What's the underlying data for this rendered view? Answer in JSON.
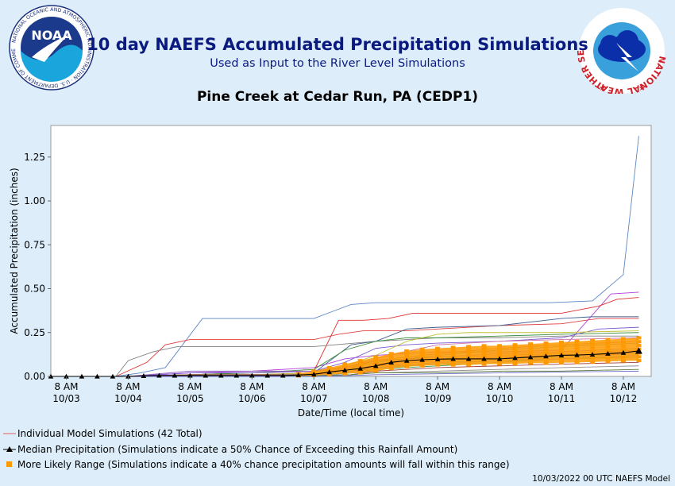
{
  "header": {
    "title": "10 day NAEFS Accumulated Precipitation Simulations",
    "subtitle": "Used as Input to the River Level Simulations",
    "station": "Pine Creek at Cedar Run, PA (CEDP1)",
    "noaa_logo_text": "NOAA",
    "noaa_ring_text": "NATIONAL OCEANIC AND ATMOSPHERIC ADMINISTRATION · U.S. DEPARTMENT OF COMMERCE",
    "nws_ring_text": "NATIONAL WEATHER SERVICE"
  },
  "legend": {
    "individual": "Individual Model Simulations (42 Total)",
    "median": "Median Precipitation (Simulations indicate a 50% Chance of Exceeding this Rainfall Amount)",
    "range": "More Likely Range (Simulations indicate a 40% chance precipitation amounts will fall within this range)"
  },
  "footer": "10/03/2022 00 UTC NAEFS Model",
  "colors": {
    "title": "#0a1a7f",
    "individual_line": "#e06060",
    "median": "#000000",
    "range": "#ff9900",
    "plot_bg": "#ffffff",
    "page_bg": "#ddeefa"
  },
  "chart_data": {
    "type": "line",
    "xlabel": "Date/Time (local time)",
    "ylabel": "Accumulated Precipitation (inches)",
    "ylim": [
      0,
      1.43
    ],
    "xlim": [
      -0.25,
      9.45
    ],
    "y_ticks": [
      0.0,
      0.25,
      0.5,
      0.75,
      1.0,
      1.25
    ],
    "y_tick_labels": [
      "0.00",
      "0.25",
      "0.50",
      "0.75",
      "1.00",
      "1.25"
    ],
    "x_ticks": [
      0,
      1,
      2,
      3,
      4,
      5,
      6,
      7,
      8,
      9
    ],
    "x_tick_labels": [
      [
        "8 AM",
        "10/03"
      ],
      [
        "8 AM",
        "10/04"
      ],
      [
        "8 AM",
        "10/05"
      ],
      [
        "8 AM",
        "10/06"
      ],
      [
        "8 AM",
        "10/07"
      ],
      [
        "8 AM",
        "10/08"
      ],
      [
        "8 AM",
        "10/09"
      ],
      [
        "8 AM",
        "10/10"
      ],
      [
        "8 AM",
        "10/11"
      ],
      [
        "8 AM",
        "10/12"
      ]
    ],
    "x_unit": "days since 8 AM 10/03",
    "grid": false,
    "legend_position": "bottom-left",
    "median": {
      "x": [
        -0.25,
        0,
        0.25,
        0.5,
        0.75,
        1,
        1.25,
        1.5,
        1.75,
        2,
        2.25,
        2.5,
        2.75,
        3,
        3.25,
        3.5,
        3.75,
        4,
        4.25,
        4.5,
        4.75,
        5,
        5.25,
        5.5,
        5.75,
        6,
        6.25,
        6.5,
        6.75,
        7,
        7.25,
        7.5,
        7.75,
        8,
        8.25,
        8.5,
        8.75,
        9,
        9.25
      ],
      "y": [
        0,
        0,
        0,
        0,
        0,
        0,
        0.003,
        0.005,
        0.005,
        0.005,
        0.005,
        0.005,
        0.005,
        0.005,
        0.005,
        0.005,
        0.008,
        0.012,
        0.025,
        0.035,
        0.045,
        0.06,
        0.08,
        0.09,
        0.095,
        0.098,
        0.1,
        0.1,
        0.1,
        0.1,
        0.105,
        0.11,
        0.115,
        0.12,
        0.122,
        0.125,
        0.13,
        0.135,
        0.145
      ]
    },
    "range": {
      "x": [
        3.75,
        4.0,
        4.25,
        4.5,
        4.75,
        5.0,
        5.25,
        5.5,
        5.75,
        6.0,
        6.25,
        6.5,
        6.75,
        7.0,
        7.25,
        7.5,
        7.75,
        8.0,
        8.25,
        8.5,
        8.75,
        9.0,
        9.25
      ],
      "low": [
        0.003,
        0.005,
        0.01,
        0.015,
        0.02,
        0.03,
        0.045,
        0.055,
        0.06,
        0.065,
        0.065,
        0.065,
        0.07,
        0.07,
        0.072,
        0.075,
        0.075,
        0.078,
        0.08,
        0.082,
        0.085,
        0.088,
        0.09
      ],
      "high": [
        0.015,
        0.03,
        0.05,
        0.07,
        0.09,
        0.11,
        0.13,
        0.145,
        0.155,
        0.16,
        0.165,
        0.17,
        0.175,
        0.175,
        0.18,
        0.185,
        0.19,
        0.195,
        0.2,
        0.205,
        0.21,
        0.215,
        0.22
      ]
    },
    "series": [
      {
        "color": "#5b86c4",
        "x": [
          0.8,
          1.2,
          1.6,
          2.2,
          3.0,
          4.0,
          4.3,
          4.6,
          5.0,
          6.0,
          7.0,
          7.8,
          8.5,
          9.0,
          9.25
        ],
        "y": [
          0,
          0.02,
          0.05,
          0.33,
          0.33,
          0.33,
          0.37,
          0.41,
          0.42,
          0.42,
          0.42,
          0.42,
          0.43,
          0.58,
          1.37
        ]
      },
      {
        "color": "#e04040",
        "x": [
          0.8,
          1.3,
          1.6,
          2.0,
          3.0,
          4.0,
          4.4,
          4.8,
          5.5,
          6.0,
          7.0,
          8.0,
          8.6,
          9.25
        ],
        "y": [
          0,
          0.08,
          0.18,
          0.21,
          0.21,
          0.21,
          0.24,
          0.26,
          0.26,
          0.27,
          0.29,
          0.3,
          0.33,
          0.33
        ]
      },
      {
        "color": "#b13fd6",
        "x": [
          1.0,
          2.0,
          3.0,
          4.0,
          4.5,
          5.0,
          5.5,
          6.0,
          7.0,
          8.0,
          8.8,
          9.25
        ],
        "y": [
          0,
          0.02,
          0.03,
          0.05,
          0.1,
          0.12,
          0.13,
          0.14,
          0.14,
          0.15,
          0.47,
          0.48
        ]
      },
      {
        "color": "#e03030",
        "x": [
          1.0,
          2.0,
          3.0,
          4.0,
          4.4,
          4.8,
          5.2,
          5.6,
          6.0,
          7.0,
          8.0,
          8.6,
          8.9,
          9.25
        ],
        "y": [
          0,
          0.01,
          0.02,
          0.03,
          0.32,
          0.32,
          0.33,
          0.36,
          0.36,
          0.36,
          0.36,
          0.4,
          0.44,
          0.45
        ]
      },
      {
        "color": "#808080",
        "x": [
          0.8,
          1.0,
          1.4,
          1.8,
          2.0,
          3.0,
          4.0,
          5.0,
          6.0,
          7.0,
          8.0,
          9.25
        ],
        "y": [
          0,
          0.09,
          0.14,
          0.17,
          0.17,
          0.17,
          0.17,
          0.2,
          0.22,
          0.22,
          0.23,
          0.23
        ]
      },
      {
        "color": "#406090",
        "x": [
          1.0,
          2.0,
          3.0,
          4.0,
          4.6,
          5.0,
          5.5,
          6.0,
          7.0,
          8.0,
          8.5,
          9.25
        ],
        "y": [
          0,
          0.01,
          0.01,
          0.02,
          0.18,
          0.2,
          0.27,
          0.28,
          0.29,
          0.33,
          0.34,
          0.34
        ]
      },
      {
        "color": "#3c8f3c",
        "x": [
          1.0,
          2.0,
          3.0,
          4.0,
          4.5,
          5.0,
          5.5,
          6.0,
          7.0,
          8.0,
          9.25
        ],
        "y": [
          0,
          0.01,
          0.02,
          0.04,
          0.15,
          0.2,
          0.22,
          0.22,
          0.23,
          0.24,
          0.25
        ]
      },
      {
        "color": "#7a5ad0",
        "x": [
          1.0,
          2.0,
          3.0,
          4.0,
          4.5,
          5.0,
          5.5,
          6.0,
          7.0,
          8.0,
          8.6,
          9.25
        ],
        "y": [
          0,
          0.02,
          0.02,
          0.03,
          0.08,
          0.16,
          0.18,
          0.19,
          0.2,
          0.22,
          0.27,
          0.28
        ]
      },
      {
        "color": "#c0c030",
        "x": [
          1.0,
          2.0,
          3.0,
          4.0,
          4.5,
          5.0,
          5.5,
          6.0,
          6.5,
          7.0,
          8.0,
          9.25
        ],
        "y": [
          0,
          0.01,
          0.01,
          0.02,
          0.06,
          0.12,
          0.2,
          0.24,
          0.25,
          0.25,
          0.25,
          0.26
        ]
      },
      {
        "color": "#d070a0",
        "x": [
          1.0,
          2.0,
          3.0,
          4.0,
          4.6,
          5.0,
          5.6,
          6.0,
          7.0,
          8.0,
          9.25
        ],
        "y": [
          0,
          0.01,
          0.01,
          0.01,
          0.06,
          0.1,
          0.15,
          0.18,
          0.2,
          0.21,
          0.22
        ]
      },
      {
        "color": "#30a0a0",
        "x": [
          1.0,
          2.0,
          3.0,
          4.0,
          4.5,
          5.0,
          6.0,
          7.0,
          8.0,
          9.25
        ],
        "y": [
          0,
          0.01,
          0.01,
          0.01,
          0.04,
          0.08,
          0.12,
          0.15,
          0.17,
          0.19
        ]
      },
      {
        "color": "#9060c0",
        "x": [
          1.0,
          2.0,
          3.0,
          4.0,
          4.5,
          5.0,
          6.0,
          7.0,
          8.0,
          9.25
        ],
        "y": [
          0,
          0.03,
          0.03,
          0.03,
          0.05,
          0.09,
          0.11,
          0.13,
          0.14,
          0.16
        ]
      },
      {
        "color": "#e08040",
        "x": [
          1.0,
          2.0,
          3.0,
          4.0,
          4.6,
          5.0,
          6.0,
          7.0,
          8.0,
          9.25
        ],
        "y": [
          0,
          0.005,
          0.005,
          0.01,
          0.03,
          0.07,
          0.1,
          0.12,
          0.13,
          0.15
        ]
      },
      {
        "color": "#40a060",
        "x": [
          1.0,
          2.0,
          3.0,
          4.0,
          4.6,
          5.0,
          6.0,
          7.0,
          8.0,
          9.25
        ],
        "y": [
          0,
          0.0,
          0.005,
          0.005,
          0.02,
          0.04,
          0.06,
          0.08,
          0.1,
          0.11
        ]
      },
      {
        "color": "#6080c0",
        "x": [
          1.0,
          2.0,
          3.0,
          4.0,
          4.6,
          5.0,
          6.0,
          7.0,
          8.0,
          9.25
        ],
        "y": [
          0,
          0.01,
          0.01,
          0.01,
          0.03,
          0.05,
          0.08,
          0.09,
          0.1,
          0.12
        ]
      },
      {
        "color": "#a04040",
        "x": [
          1.0,
          2.0,
          3.0,
          4.0,
          4.6,
          5.0,
          6.0,
          7.0,
          8.0,
          9.25
        ],
        "y": [
          0,
          0.005,
          0.005,
          0.005,
          0.01,
          0.03,
          0.05,
          0.06,
          0.07,
          0.08
        ]
      },
      {
        "color": "#909090",
        "x": [
          1.0,
          2.0,
          3.0,
          4.0,
          4.6,
          5.0,
          6.0,
          7.0,
          8.0,
          9.25
        ],
        "y": [
          0,
          0.0,
          0.0,
          0.0,
          0.01,
          0.02,
          0.03,
          0.04,
          0.05,
          0.06
        ]
      },
      {
        "color": "#c04080",
        "x": [
          1.0,
          2.0,
          3.0,
          4.0,
          4.6,
          5.0,
          6.0,
          7.0,
          8.0,
          9.25
        ],
        "y": [
          0,
          0.01,
          0.01,
          0.01,
          0.04,
          0.06,
          0.09,
          0.11,
          0.12,
          0.13
        ]
      },
      {
        "color": "#50a0d0",
        "x": [
          1.0,
          2.0,
          3.0,
          4.0,
          4.6,
          5.0,
          6.0,
          7.0,
          8.0,
          9.25
        ],
        "y": [
          0,
          0.005,
          0.005,
          0.005,
          0.02,
          0.05,
          0.07,
          0.09,
          0.11,
          0.13
        ]
      },
      {
        "color": "#608040",
        "x": [
          1.0,
          2.0,
          3.0,
          4.0,
          4.6,
          5.0,
          6.0,
          7.0,
          8.0,
          9.25
        ],
        "y": [
          0,
          0.0,
          0.0,
          0.005,
          0.01,
          0.02,
          0.02,
          0.03,
          0.03,
          0.04
        ]
      },
      {
        "color": "#b07030",
        "x": [
          1.0,
          2.0,
          3.0,
          4.0,
          4.6,
          5.0,
          6.0,
          7.0,
          8.0,
          9.25
        ],
        "y": [
          0,
          0.01,
          0.01,
          0.01,
          0.05,
          0.09,
          0.13,
          0.16,
          0.18,
          0.2
        ]
      },
      {
        "color": "#7070d0",
        "x": [
          1.0,
          2.0,
          3.0,
          4.0,
          4.6,
          5.0,
          6.0,
          7.0,
          8.0,
          9.25
        ],
        "y": [
          0,
          0.0,
          0.0,
          0.0,
          0.005,
          0.01,
          0.015,
          0.02,
          0.025,
          0.03
        ]
      }
    ]
  }
}
